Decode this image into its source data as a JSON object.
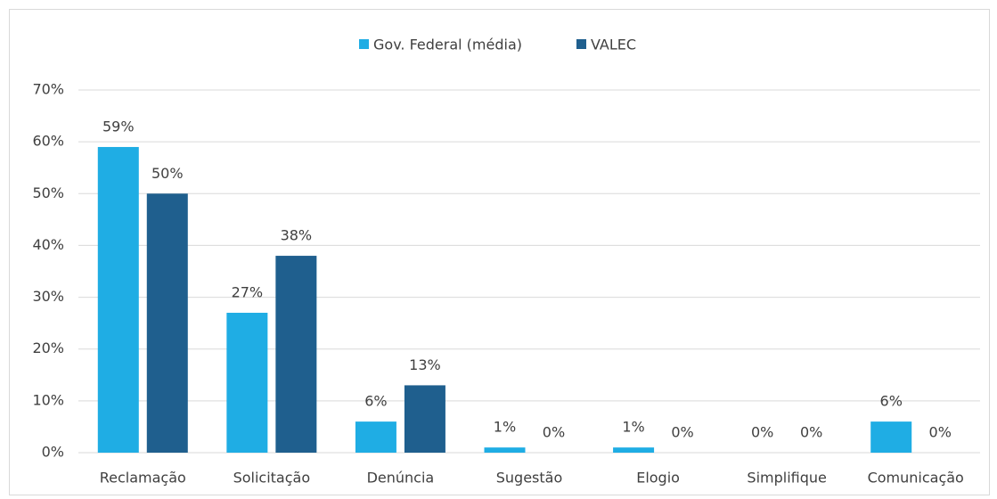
{
  "chart_data": {
    "type": "bar",
    "categories": [
      "Reclamação",
      "Solicitação",
      "Denúncia",
      "Sugestão",
      "Elogio",
      "Simplifique",
      "Comunicação"
    ],
    "series": [
      {
        "name": "Gov. Federal (média)",
        "color": "#1fadE4",
        "values": [
          59,
          27,
          6,
          1,
          1,
          0,
          6
        ],
        "value_labels": [
          "59%",
          "27%",
          "6%",
          "1%",
          "1%",
          "0%",
          "6%"
        ]
      },
      {
        "name": "VALEC",
        "color": "#1f5f8e",
        "values": [
          50,
          38,
          13,
          0,
          0,
          0,
          0
        ],
        "value_labels": [
          "50%",
          "38%",
          "13%",
          "0%",
          "0%",
          "0%",
          "0%"
        ]
      }
    ],
    "ylim": [
      0,
      70
    ],
    "yticks": [
      {
        "value": 0,
        "label": "0%"
      },
      {
        "value": 10,
        "label": "10%"
      },
      {
        "value": 20,
        "label": "20%"
      },
      {
        "value": 30,
        "label": "30%"
      },
      {
        "value": 40,
        "label": "40%"
      },
      {
        "value": 50,
        "label": "50%"
      },
      {
        "value": 60,
        "label": "60%"
      },
      {
        "value": 70,
        "label": "70%"
      }
    ],
    "grid": true,
    "legend": "top"
  }
}
